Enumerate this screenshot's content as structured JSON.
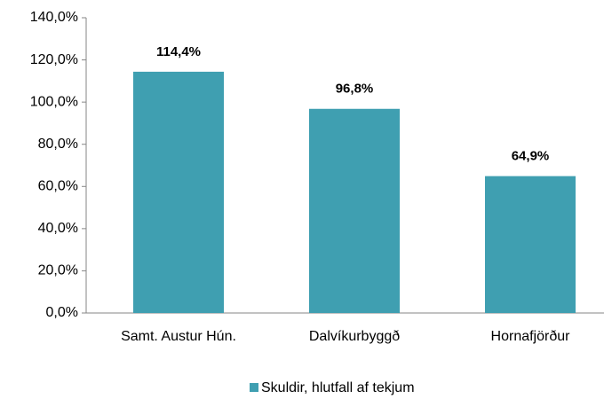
{
  "chart_data": {
    "type": "bar",
    "categories": [
      "Samt. Austur Hún.",
      "Dalvíkurbyggð",
      "Hornafjörður"
    ],
    "series": [
      {
        "name": "Skuldir, hlutfall af tekjum",
        "color": "#3f9fb1",
        "values": [
          114.4,
          96.8,
          64.9
        ],
        "value_labels": [
          "114,4%",
          "96,8%",
          "64,9%"
        ]
      }
    ],
    "ylim": [
      0,
      140
    ],
    "yticks": [
      {
        "value": 0,
        "label": "0,0%"
      },
      {
        "value": 20,
        "label": "20,0%"
      },
      {
        "value": 40,
        "label": "40,0%"
      },
      {
        "value": 60,
        "label": "60,0%"
      },
      {
        "value": 80,
        "label": "80,0%"
      },
      {
        "value": 100,
        "label": "100,0%"
      },
      {
        "value": 120,
        "label": "120,0%"
      },
      {
        "value": 140,
        "label": "140,0%"
      }
    ],
    "legend": "bottom"
  }
}
